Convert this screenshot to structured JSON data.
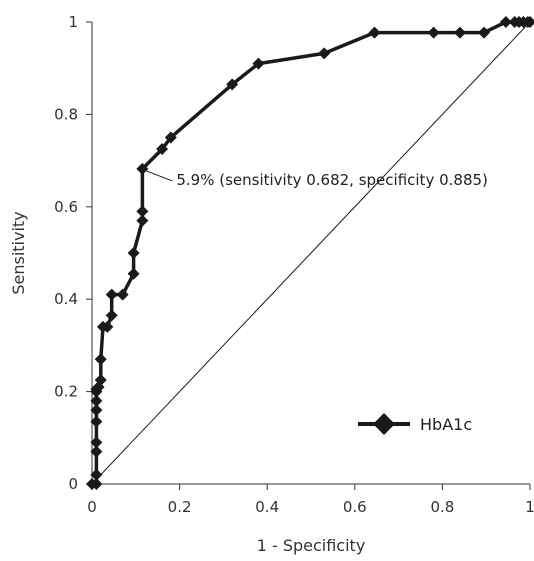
{
  "chart_data": {
    "type": "line",
    "xlabel": "1 - Specificity",
    "ylabel": "Sensitivity",
    "xlim": [
      0,
      1
    ],
    "ylim": [
      0,
      1
    ],
    "x_ticks": [
      "0",
      "0.2",
      "0.4",
      "0.6",
      "0.8",
      "1"
    ],
    "y_ticks": [
      "0",
      "0.2",
      "0.4",
      "0.6",
      "0.8",
      "1"
    ],
    "grid": false,
    "legend_position": "bottom-right",
    "series_color": "#1a1a1a",
    "reference_line": {
      "x": [
        0,
        1
      ],
      "y": [
        0,
        1
      ]
    },
    "series": [
      {
        "name": "HbA1c",
        "x": [
          0,
          0.01,
          0.01,
          0.01,
          0.01,
          0.01,
          0.01,
          0.01,
          0.01,
          0.01,
          0.015,
          0.02,
          0.02,
          0.025,
          0.035,
          0.045,
          0.045,
          0.07,
          0.095,
          0.095,
          0.115,
          0.115,
          0.115,
          0.16,
          0.18,
          0.32,
          0.38,
          0.53,
          0.645,
          0.78,
          0.84,
          0.895,
          0.945,
          0.965,
          0.975,
          0.985,
          0.995,
          1
        ],
        "y": [
          0,
          0,
          0.02,
          0.07,
          0.09,
          0.135,
          0.16,
          0.18,
          0.2,
          0.205,
          0.21,
          0.225,
          0.27,
          0.34,
          0.34,
          0.365,
          0.41,
          0.41,
          0.455,
          0.5,
          0.57,
          0.59,
          0.682,
          0.725,
          0.75,
          0.865,
          0.91,
          0.932,
          0.977,
          0.977,
          0.977,
          0.977,
          1,
          1,
          1,
          1,
          1,
          1
        ]
      }
    ],
    "annotation": {
      "text": "5.9% (sensitivity 0.682, specificity 0.885)",
      "x": 0.115,
      "y": 0.682
    }
  }
}
